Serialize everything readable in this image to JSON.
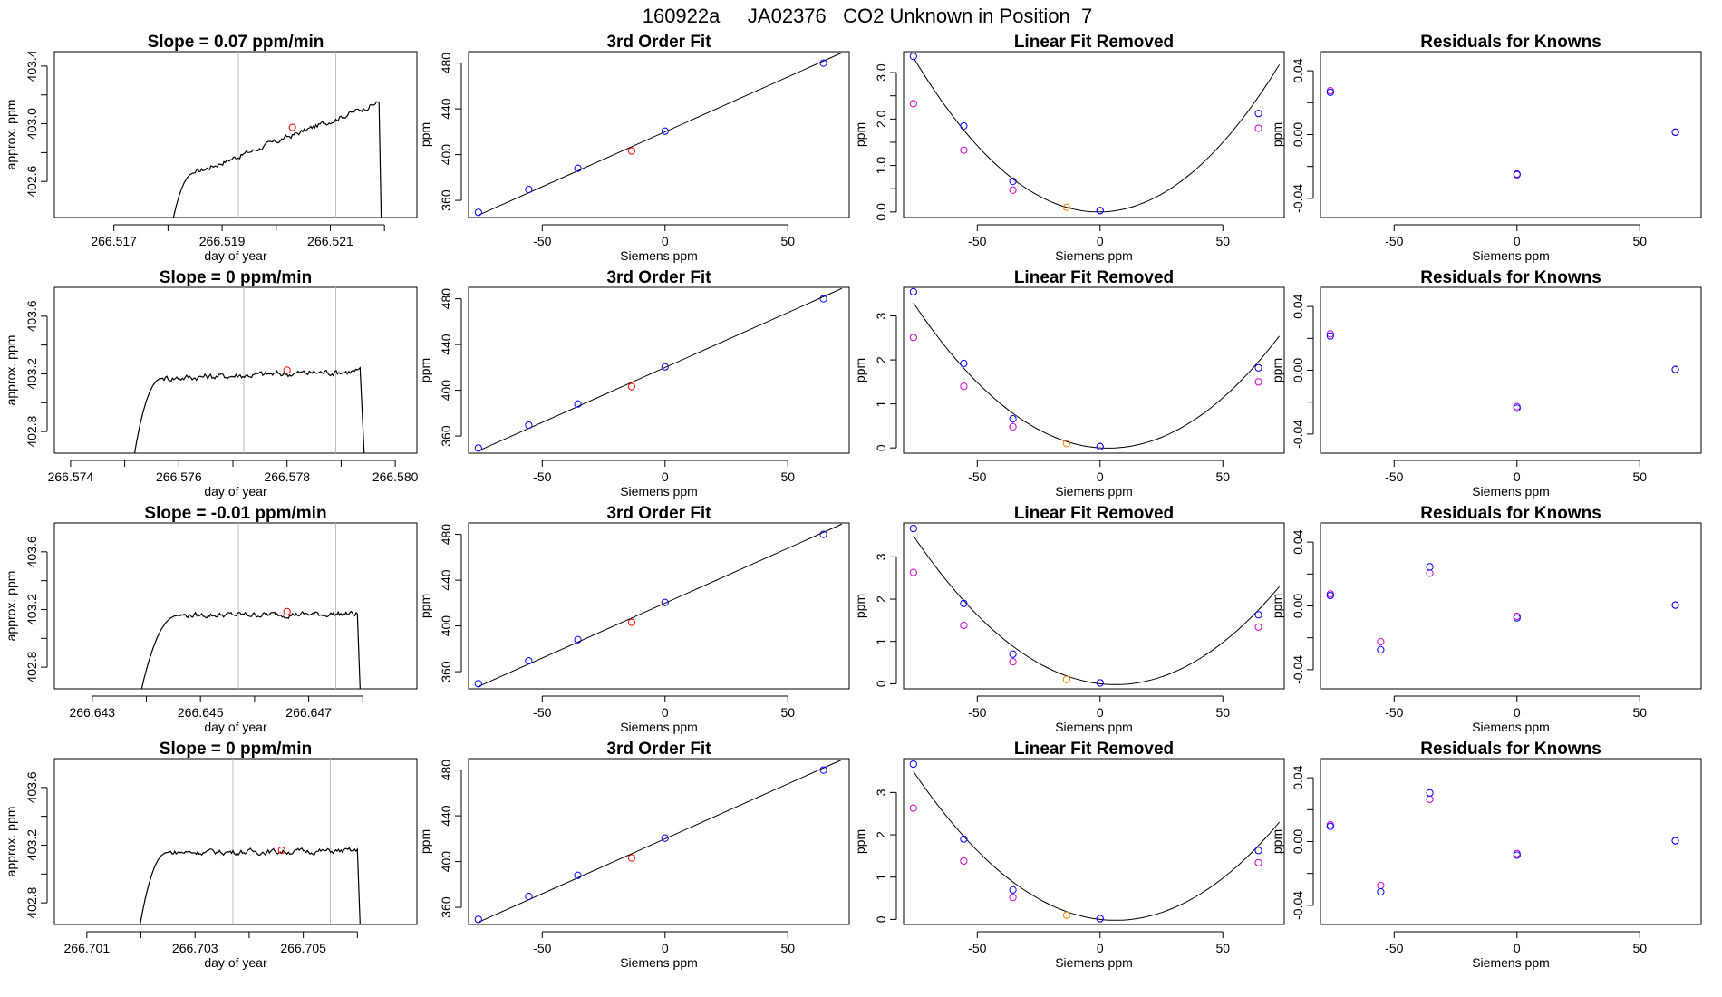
{
  "page_title": "160922a     JA02376   CO2 Unknown in Position  7",
  "colors": {
    "ink": "#000000",
    "known_point": "#0000ff",
    "unknown_point": "#ff0000",
    "raw_point": "#cc00cc",
    "unknown_point_lin": "#ff8000",
    "marker_line": "#bebebe"
  },
  "chart_data": [
    {
      "type": "line",
      "row": 0,
      "title": "Slope =  0.07  ppm/min",
      "xlabel": "day of year",
      "ylabel": "approx. ppm",
      "xlim": [
        266.5159,
        266.5226
      ],
      "ylim": [
        402.35,
        403.5
      ],
      "xticks": [
        266.517,
        266.518,
        266.519,
        266.52,
        266.521,
        266.522
      ],
      "xticklabels": [
        "266.517",
        "",
        "266.519",
        "",
        "266.521",
        ""
      ],
      "yticks": [
        402.6,
        402.8,
        403.0,
        403.2,
        403.4
      ],
      "yticklabels": [
        "402.6",
        "",
        "403.0",
        "",
        "403.4"
      ],
      "markers_x": [
        266.5193,
        266.5211
      ],
      "mid_point": {
        "x": 266.5203,
        "y": 402.975
      },
      "trace": {
        "start": 266.518,
        "rise_end": 266.5185,
        "rise_level": 402.66,
        "end_level": 403.15,
        "drop_start": 266.5219,
        "drop_end": 266.52195,
        "end_y": 402.35,
        "noise": 0.02
      }
    },
    {
      "type": "line",
      "row": 1,
      "title": "Slope =  0  ppm/min",
      "xlabel": "day of year",
      "ylabel": "approx. ppm",
      "xlim": [
        266.5737,
        266.5804
      ],
      "ylim": [
        402.65,
        403.8
      ],
      "xticks": [
        266.574,
        266.575,
        266.576,
        266.577,
        266.578,
        266.579,
        266.58
      ],
      "xticklabels": [
        "266.574",
        "",
        "266.576",
        "",
        "266.578",
        "",
        "266.580"
      ],
      "yticks": [
        402.8,
        403.0,
        403.2,
        403.4,
        403.6
      ],
      "yticklabels": [
        "402.8",
        "",
        "403.2",
        "",
        "403.6"
      ],
      "markers_x": [
        266.5772,
        266.5789
      ],
      "mid_point": {
        "x": 266.578,
        "y": 403.225
      },
      "trace": {
        "start": 266.5751,
        "rise_end": 266.5757,
        "rise_level": 403.17,
        "end_level": 403.22,
        "drop_start": 266.57935,
        "drop_end": 266.57945,
        "end_y": 402.65,
        "noise": 0.025
      }
    },
    {
      "type": "line",
      "row": 2,
      "title": "Slope =  -0.01  ppm/min",
      "xlabel": "day of year",
      "ylabel": "approx. ppm",
      "xlim": [
        266.6423,
        266.649
      ],
      "ylim": [
        402.65,
        403.8
      ],
      "xticks": [
        266.643,
        266.644,
        266.645,
        266.646,
        266.647,
        266.648
      ],
      "xticklabels": [
        "266.643",
        "",
        "266.645",
        "",
        "266.647",
        ""
      ],
      "yticks": [
        402.8,
        403.0,
        403.2,
        403.4,
        403.6
      ],
      "yticklabels": [
        "402.8",
        "",
        "403.2",
        "",
        "403.6"
      ],
      "markers_x": [
        266.6457,
        266.6475
      ],
      "mid_point": {
        "x": 266.6466,
        "y": 403.185
      },
      "trace": {
        "start": 266.6438,
        "rise_end": 266.6446,
        "rise_level": 403.16,
        "end_level": 403.17,
        "drop_start": 266.6479,
        "drop_end": 266.64797,
        "end_y": 402.65,
        "noise": 0.02
      }
    },
    {
      "type": "line",
      "row": 3,
      "title": "Slope =  0  ppm/min",
      "xlabel": "day of year",
      "ylabel": "approx. ppm",
      "xlim": [
        266.7004,
        266.7071
      ],
      "ylim": [
        402.65,
        403.8
      ],
      "xticks": [
        266.701,
        266.702,
        266.703,
        266.704,
        266.705,
        266.706
      ],
      "xticklabels": [
        "266.701",
        "",
        "266.703",
        "",
        "266.705",
        ""
      ],
      "yticks": [
        402.8,
        403.0,
        403.2,
        403.4,
        403.6
      ],
      "yticklabels": [
        "402.8",
        "",
        "403.2",
        "",
        "403.6"
      ],
      "markers_x": [
        266.7037,
        266.7055
      ],
      "mid_point": {
        "x": 266.7046,
        "y": 403.165
      },
      "trace": {
        "start": 266.7019,
        "rise_end": 266.7025,
        "rise_level": 403.15,
        "end_level": 403.16,
        "drop_start": 266.706,
        "drop_end": 266.70607,
        "end_y": 402.65,
        "noise": 0.02
      }
    },
    {
      "type": "scatter",
      "row": 0,
      "subtype": "cubic_fit",
      "title": "3rd Order Fit",
      "xlabel": "Siemens ppm",
      "ylabel": "ppm",
      "xlim": [
        -80,
        75
      ],
      "ylim": [
        345,
        490
      ],
      "xticks": [
        -50,
        0,
        50
      ],
      "xticklabels": [
        "-50",
        "0",
        "50"
      ],
      "yticks": [
        360,
        400,
        440,
        480
      ],
      "yticklabels": [
        "360",
        "400",
        "440",
        "480"
      ],
      "fit_line": [
        [
          -76,
          347
        ],
        [
          72,
          489
        ]
      ],
      "known_points": [
        [
          -76,
          349.5
        ],
        [
          -55.5,
          369.5
        ],
        [
          -35.5,
          388
        ],
        [
          0,
          420.5
        ],
        [
          64.5,
          480
        ]
      ],
      "unknown_points": [
        [
          -13.6,
          403.2
        ]
      ]
    },
    {
      "type": "scatter",
      "row": 1,
      "subtype": "cubic_fit",
      "title": "3rd Order Fit",
      "xlabel": "Siemens ppm",
      "ylabel": "ppm",
      "xlim": [
        -80,
        75
      ],
      "ylim": [
        345,
        490
      ],
      "xticks": [
        -50,
        0,
        50
      ],
      "xticklabels": [
        "-50",
        "0",
        "50"
      ],
      "yticks": [
        360,
        400,
        440,
        480
      ],
      "yticklabels": [
        "360",
        "400",
        "440",
        "480"
      ],
      "fit_line": [
        [
          -76,
          347
        ],
        [
          72,
          489
        ]
      ],
      "known_points": [
        [
          -76,
          349.5
        ],
        [
          -55.5,
          369.5
        ],
        [
          -35.5,
          388
        ],
        [
          0,
          420.5
        ],
        [
          64.5,
          480
        ]
      ],
      "unknown_points": [
        [
          -13.6,
          403.2
        ]
      ]
    },
    {
      "type": "scatter",
      "row": 2,
      "subtype": "cubic_fit",
      "title": "3rd Order Fit",
      "xlabel": "Siemens ppm",
      "ylabel": "ppm",
      "xlim": [
        -80,
        75
      ],
      "ylim": [
        345,
        490
      ],
      "xticks": [
        -50,
        0,
        50
      ],
      "xticklabels": [
        "-50",
        "0",
        "50"
      ],
      "yticks": [
        360,
        400,
        440,
        480
      ],
      "yticklabels": [
        "360",
        "400",
        "440",
        "480"
      ],
      "fit_line": [
        [
          -76,
          347
        ],
        [
          72,
          489
        ]
      ],
      "known_points": [
        [
          -76,
          349.5
        ],
        [
          -55.5,
          369.5
        ],
        [
          -35.5,
          388
        ],
        [
          0,
          420.5
        ],
        [
          64.5,
          480
        ]
      ],
      "unknown_points": [
        [
          -13.6,
          403.2
        ]
      ]
    },
    {
      "type": "scatter",
      "row": 3,
      "subtype": "cubic_fit",
      "title": "3rd Order Fit",
      "xlabel": "Siemens ppm",
      "ylabel": "ppm",
      "xlim": [
        -80,
        75
      ],
      "ylim": [
        345,
        490
      ],
      "xticks": [
        -50,
        0,
        50
      ],
      "xticklabels": [
        "-50",
        "0",
        "50"
      ],
      "yticks": [
        360,
        400,
        440,
        480
      ],
      "yticklabels": [
        "360",
        "400",
        "440",
        "480"
      ],
      "fit_line": [
        [
          -76,
          347
        ],
        [
          72,
          489
        ]
      ],
      "known_points": [
        [
          -76,
          349.5
        ],
        [
          -55.5,
          369.5
        ],
        [
          -35.5,
          388
        ],
        [
          0,
          420.5
        ],
        [
          64.5,
          480
        ]
      ],
      "unknown_points": [
        [
          -13.6,
          403.2
        ]
      ]
    },
    {
      "type": "scatter",
      "row": 0,
      "subtype": "linear_removed",
      "title": "Linear Fit Removed",
      "xlabel": "Siemens ppm",
      "ylabel": "ppm",
      "xlim": [
        -80,
        75
      ],
      "ylim": [
        -0.12,
        3.45
      ],
      "xticks": [
        -50,
        0,
        50
      ],
      "xticklabels": [
        "-50",
        "0",
        "50"
      ],
      "yticks": [
        0,
        1,
        2,
        3
      ],
      "yticklabels": [
        "0.0",
        "1.0",
        "2.0",
        "3.0"
      ],
      "extra_yticks": [
        0.5,
        1.5,
        2.5
      ],
      "curve": {
        "from": -76,
        "to": 73,
        "a": 0.000585,
        "b": 0.0007
      },
      "known_points": [
        [
          -76,
          3.35
        ],
        [
          -55.5,
          1.85
        ],
        [
          -35.5,
          0.66
        ],
        [
          0,
          0.03
        ],
        [
          64.5,
          2.12
        ]
      ],
      "raw_points": [
        [
          -76,
          2.33
        ],
        [
          -55.5,
          1.33
        ],
        [
          -35.5,
          0.47
        ],
        [
          0,
          0.03
        ],
        [
          64.5,
          1.8
        ]
      ],
      "unknown_points": [
        [
          -13.6,
          0.1
        ]
      ]
    },
    {
      "type": "scatter",
      "row": 1,
      "subtype": "linear_removed",
      "title": "Linear Fit Removed",
      "xlabel": "Siemens ppm",
      "ylabel": "ppm",
      "xlim": [
        -80,
        75
      ],
      "ylim": [
        -0.12,
        3.65
      ],
      "xticks": [
        -50,
        0,
        50
      ],
      "xticklabels": [
        "-50",
        "0",
        "50"
      ],
      "yticks": [
        0,
        1,
        2,
        3
      ],
      "yticklabels": [
        "0",
        "1",
        "2",
        "3"
      ],
      "curve": {
        "from": -76,
        "to": 73,
        "a": 0.000525,
        "b": -0.0035
      },
      "known_points": [
        [
          -76,
          3.55
        ],
        [
          -55.5,
          1.92
        ],
        [
          -35.5,
          0.66
        ],
        [
          0,
          0.03
        ],
        [
          64.5,
          1.82
        ]
      ],
      "raw_points": [
        [
          -76,
          2.51
        ],
        [
          -55.5,
          1.4
        ],
        [
          -35.5,
          0.48
        ],
        [
          0,
          0.03
        ],
        [
          64.5,
          1.5
        ]
      ],
      "unknown_points": [
        [
          -13.6,
          0.1
        ]
      ]
    },
    {
      "type": "scatter",
      "row": 2,
      "subtype": "linear_removed",
      "title": "Linear Fit Removed",
      "xlabel": "Siemens ppm",
      "ylabel": "ppm",
      "xlim": [
        -80,
        75
      ],
      "ylim": [
        -0.12,
        3.8
      ],
      "xticks": [
        -50,
        0,
        50
      ],
      "xticklabels": [
        "-50",
        "0",
        "50"
      ],
      "yticks": [
        0,
        1,
        2,
        3
      ],
      "yticklabels": [
        "0",
        "1",
        "2",
        "3"
      ],
      "curve": {
        "from": -76,
        "to": 73,
        "a": 0.00052,
        "b": -0.0065
      },
      "known_points": [
        [
          -76,
          3.67
        ],
        [
          -55.5,
          1.9
        ],
        [
          -35.5,
          0.7
        ],
        [
          0,
          0.02
        ],
        [
          64.5,
          1.63
        ]
      ],
      "raw_points": [
        [
          -76,
          2.63
        ],
        [
          -55.5,
          1.38
        ],
        [
          -35.5,
          0.52
        ],
        [
          0,
          0.02
        ],
        [
          64.5,
          1.34
        ]
      ],
      "unknown_points": [
        [
          -13.6,
          0.1
        ]
      ]
    },
    {
      "type": "scatter",
      "row": 3,
      "subtype": "linear_removed",
      "title": "Linear Fit Removed",
      "xlabel": "Siemens ppm",
      "ylabel": "ppm",
      "xlim": [
        -80,
        75
      ],
      "ylim": [
        -0.12,
        3.8
      ],
      "xticks": [
        -50,
        0,
        50
      ],
      "xticklabels": [
        "-50",
        "0",
        "50"
      ],
      "yticks": [
        0,
        1,
        2,
        3
      ],
      "yticklabels": [
        "0",
        "1",
        "2",
        "3"
      ],
      "curve": {
        "from": -76,
        "to": 73,
        "a": 0.00052,
        "b": -0.0065
      },
      "known_points": [
        [
          -76,
          3.67
        ],
        [
          -55.5,
          1.9
        ],
        [
          -35.5,
          0.7
        ],
        [
          0,
          0.02
        ],
        [
          64.5,
          1.63
        ]
      ],
      "raw_points": [
        [
          -76,
          2.63
        ],
        [
          -55.5,
          1.38
        ],
        [
          -35.5,
          0.52
        ],
        [
          0,
          0.02
        ],
        [
          64.5,
          1.34
        ]
      ],
      "unknown_points": [
        [
          -13.6,
          0.1
        ]
      ]
    },
    {
      "type": "scatter",
      "row": 0,
      "subtype": "residuals",
      "title": "Residuals for Knowns",
      "xlabel": "Siemens ppm",
      "ylabel": "ppm",
      "xlim": [
        -80,
        75
      ],
      "ylim": [
        -0.052,
        0.052
      ],
      "xticks": [
        -50,
        0,
        50
      ],
      "xticklabels": [
        "-50",
        "0",
        "50"
      ],
      "yticks": [
        -0.04,
        -0.02,
        0,
        0.02,
        0.04
      ],
      "yticklabels": [
        "-0.04",
        "",
        "0.00",
        "",
        "0.04"
      ],
      "known_points": [
        [
          -76,
          0.0265
        ],
        [
          0,
          -0.0248
        ],
        [
          64.5,
          0.0015
        ]
      ],
      "raw_points": [
        [
          -76,
          0.0275
        ],
        [
          0,
          -0.0252
        ],
        [
          64.5,
          0.0015
        ]
      ]
    },
    {
      "type": "scatter",
      "row": 1,
      "subtype": "residuals",
      "title": "Residuals for Knowns",
      "xlabel": "Siemens ppm",
      "ylabel": "ppm",
      "xlim": [
        -80,
        75
      ],
      "ylim": [
        -0.052,
        0.052
      ],
      "xticks": [
        -50,
        0,
        50
      ],
      "xticklabels": [
        "-50",
        "0",
        "50"
      ],
      "yticks": [
        -0.04,
        -0.02,
        0,
        0.02,
        0.04
      ],
      "yticklabels": [
        "-0.04",
        "",
        "0.00",
        "",
        "0.04"
      ],
      "known_points": [
        [
          -76,
          0.0215
        ],
        [
          0,
          -0.0238
        ],
        [
          64.5,
          0.0005
        ]
      ],
      "raw_points": [
        [
          -76,
          0.0228
        ],
        [
          0,
          -0.0228
        ],
        [
          64.5,
          0.0005
        ]
      ]
    },
    {
      "type": "scatter",
      "row": 2,
      "subtype": "residuals",
      "title": "Residuals for Knowns",
      "xlabel": "Siemens ppm",
      "ylabel": "ppm",
      "xlim": [
        -80,
        75
      ],
      "ylim": [
        -0.052,
        0.052
      ],
      "xticks": [
        -50,
        0,
        50
      ],
      "xticklabels": [
        "-50",
        "0",
        "50"
      ],
      "yticks": [
        -0.04,
        -0.02,
        0,
        0.02,
        0.04
      ],
      "yticklabels": [
        "-0.04",
        "",
        "0.00",
        "",
        "0.04"
      ],
      "known_points": [
        [
          -76,
          0.0065
        ],
        [
          -55.5,
          -0.0275
        ],
        [
          -35.5,
          0.0245
        ],
        [
          0,
          -0.0075
        ],
        [
          64.5,
          0.0005
        ]
      ],
      "raw_points": [
        [
          -76,
          0.0075
        ],
        [
          -55.5,
          -0.0225
        ],
        [
          -35.5,
          0.0205
        ],
        [
          0,
          -0.0065
        ],
        [
          64.5,
          0.0005
        ]
      ]
    },
    {
      "type": "scatter",
      "row": 3,
      "subtype": "residuals",
      "title": "Residuals for Knowns",
      "xlabel": "Siemens ppm",
      "ylabel": "ppm",
      "xlim": [
        -80,
        75
      ],
      "ylim": [
        -0.052,
        0.052
      ],
      "xticks": [
        -50,
        0,
        50
      ],
      "xticklabels": [
        "-50",
        "0",
        "50"
      ],
      "yticks": [
        -0.04,
        -0.02,
        0,
        0.02,
        0.04
      ],
      "yticklabels": [
        "-0.04",
        "",
        "0.00",
        "",
        "0.04"
      ],
      "known_points": [
        [
          -76,
          0.0095
        ],
        [
          -55.5,
          -0.0315
        ],
        [
          -35.5,
          0.0305
        ],
        [
          0,
          -0.0085
        ],
        [
          64.5,
          0.0005
        ]
      ],
      "raw_points": [
        [
          -76,
          0.0105
        ],
        [
          -55.5,
          -0.0275
        ],
        [
          -35.5,
          0.0265
        ],
        [
          0,
          -0.0075
        ],
        [
          64.5,
          0.0005
        ]
      ]
    }
  ]
}
